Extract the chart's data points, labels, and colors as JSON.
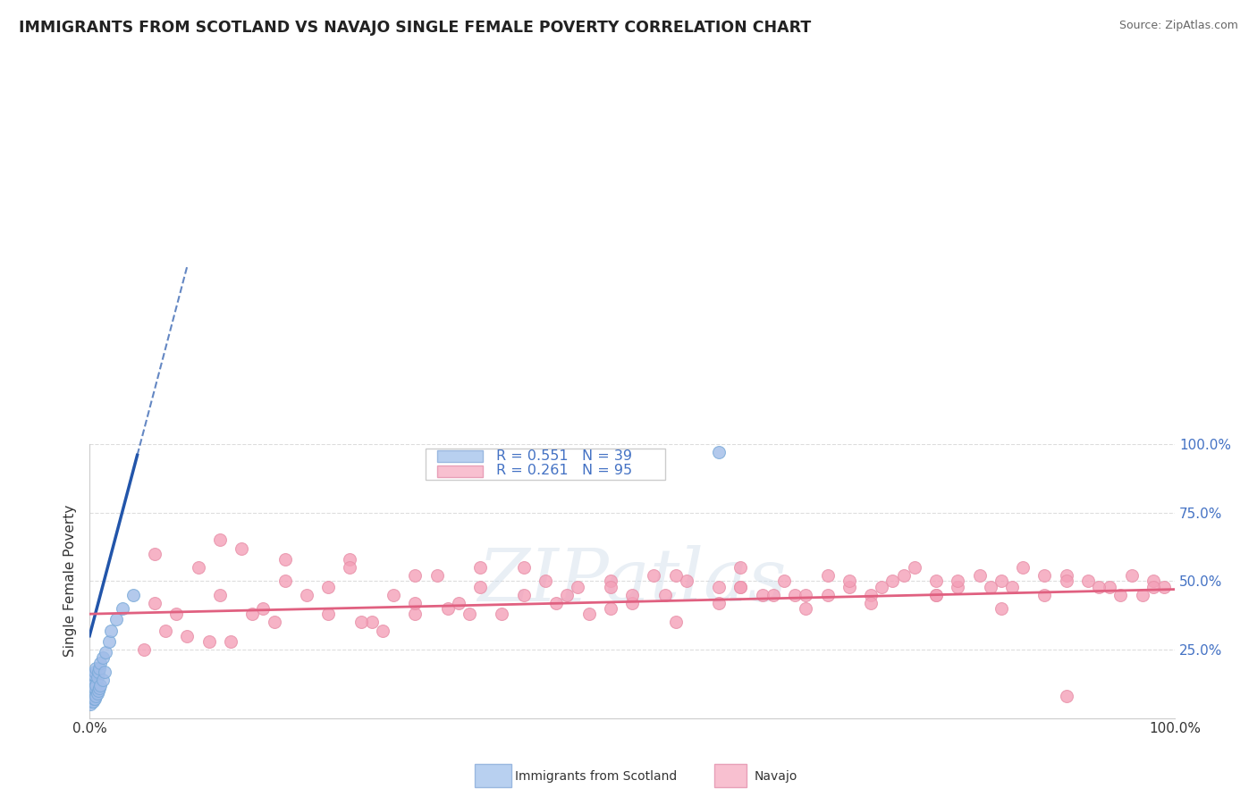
{
  "title": "IMMIGRANTS FROM SCOTLAND VS NAVAJO SINGLE FEMALE POVERTY CORRELATION CHART",
  "source": "Source: ZipAtlas.com",
  "ylabel": "Single Female Poverty",
  "watermark": "ZIPatlas",
  "R_scotland": 0.551,
  "N_scotland": 39,
  "R_navajo": 0.261,
  "N_navajo": 95,
  "xlim": [
    0.0,
    1.0
  ],
  "ylim": [
    0.0,
    1.0
  ],
  "ytick_labels": [
    "25.0%",
    "50.0%",
    "75.0%",
    "100.0%"
  ],
  "ytick_positions": [
    0.25,
    0.5,
    0.75,
    1.0
  ],
  "accent_color": "#4472c4",
  "scotland_dot_color": "#a0bce8",
  "navajo_dot_color": "#f4a0b8",
  "scotland_line_color": "#2255aa",
  "navajo_line_color": "#e06080",
  "background_color": "#ffffff",
  "grid_color": "#dddddd",
  "legend_scotland_color": "#b8d0f0",
  "legend_navajo_color": "#f8c0d0",
  "scotland_points_x": [
    0.001,
    0.001,
    0.001,
    0.001,
    0.002,
    0.002,
    0.002,
    0.002,
    0.003,
    0.003,
    0.003,
    0.003,
    0.004,
    0.004,
    0.004,
    0.005,
    0.005,
    0.005,
    0.006,
    0.006,
    0.006,
    0.007,
    0.007,
    0.008,
    0.008,
    0.009,
    0.009,
    0.01,
    0.01,
    0.012,
    0.012,
    0.014,
    0.015,
    0.018,
    0.02,
    0.025,
    0.03,
    0.04,
    0.58
  ],
  "scotland_points_y": [
    0.05,
    0.08,
    0.11,
    0.14,
    0.06,
    0.09,
    0.12,
    0.15,
    0.06,
    0.09,
    0.12,
    0.16,
    0.07,
    0.11,
    0.16,
    0.07,
    0.11,
    0.17,
    0.08,
    0.12,
    0.18,
    0.09,
    0.15,
    0.1,
    0.17,
    0.11,
    0.18,
    0.12,
    0.2,
    0.14,
    0.22,
    0.17,
    0.24,
    0.28,
    0.32,
    0.36,
    0.4,
    0.45,
    0.97
  ],
  "navajo_points_x": [
    0.06,
    0.08,
    0.1,
    0.12,
    0.14,
    0.16,
    0.18,
    0.22,
    0.24,
    0.26,
    0.28,
    0.3,
    0.32,
    0.34,
    0.36,
    0.4,
    0.44,
    0.46,
    0.48,
    0.5,
    0.52,
    0.54,
    0.58,
    0.6,
    0.62,
    0.64,
    0.66,
    0.68,
    0.7,
    0.72,
    0.74,
    0.76,
    0.78,
    0.8,
    0.82,
    0.84,
    0.86,
    0.88,
    0.9,
    0.92,
    0.94,
    0.96,
    0.98,
    0.99,
    0.07,
    0.11,
    0.15,
    0.2,
    0.25,
    0.3,
    0.35,
    0.4,
    0.45,
    0.5,
    0.55,
    0.6,
    0.65,
    0.7,
    0.75,
    0.8,
    0.85,
    0.9,
    0.95,
    0.98,
    0.05,
    0.09,
    0.13,
    0.17,
    0.22,
    0.27,
    0.33,
    0.38,
    0.43,
    0.48,
    0.53,
    0.58,
    0.63,
    0.68,
    0.73,
    0.78,
    0.83,
    0.88,
    0.93,
    0.97,
    0.06,
    0.12,
    0.18,
    0.24,
    0.3,
    0.36,
    0.42,
    0.48,
    0.54,
    0.6,
    0.66,
    0.72,
    0.78,
    0.84,
    0.9
  ],
  "navajo_points_y": [
    0.42,
    0.38,
    0.55,
    0.45,
    0.62,
    0.4,
    0.5,
    0.48,
    0.58,
    0.35,
    0.45,
    0.38,
    0.52,
    0.42,
    0.48,
    0.55,
    0.45,
    0.38,
    0.5,
    0.42,
    0.52,
    0.35,
    0.48,
    0.55,
    0.45,
    0.5,
    0.4,
    0.52,
    0.48,
    0.45,
    0.5,
    0.55,
    0.45,
    0.48,
    0.52,
    0.5,
    0.55,
    0.45,
    0.52,
    0.5,
    0.48,
    0.52,
    0.5,
    0.48,
    0.32,
    0.28,
    0.38,
    0.45,
    0.35,
    0.42,
    0.38,
    0.45,
    0.48,
    0.45,
    0.5,
    0.48,
    0.45,
    0.5,
    0.52,
    0.5,
    0.48,
    0.5,
    0.45,
    0.48,
    0.25,
    0.3,
    0.28,
    0.35,
    0.38,
    0.32,
    0.4,
    0.38,
    0.42,
    0.4,
    0.45,
    0.42,
    0.45,
    0.45,
    0.48,
    0.5,
    0.48,
    0.52,
    0.48,
    0.45,
    0.6,
    0.65,
    0.58,
    0.55,
    0.52,
    0.55,
    0.5,
    0.48,
    0.52,
    0.48,
    0.45,
    0.42,
    0.45,
    0.4,
    0.08
  ]
}
